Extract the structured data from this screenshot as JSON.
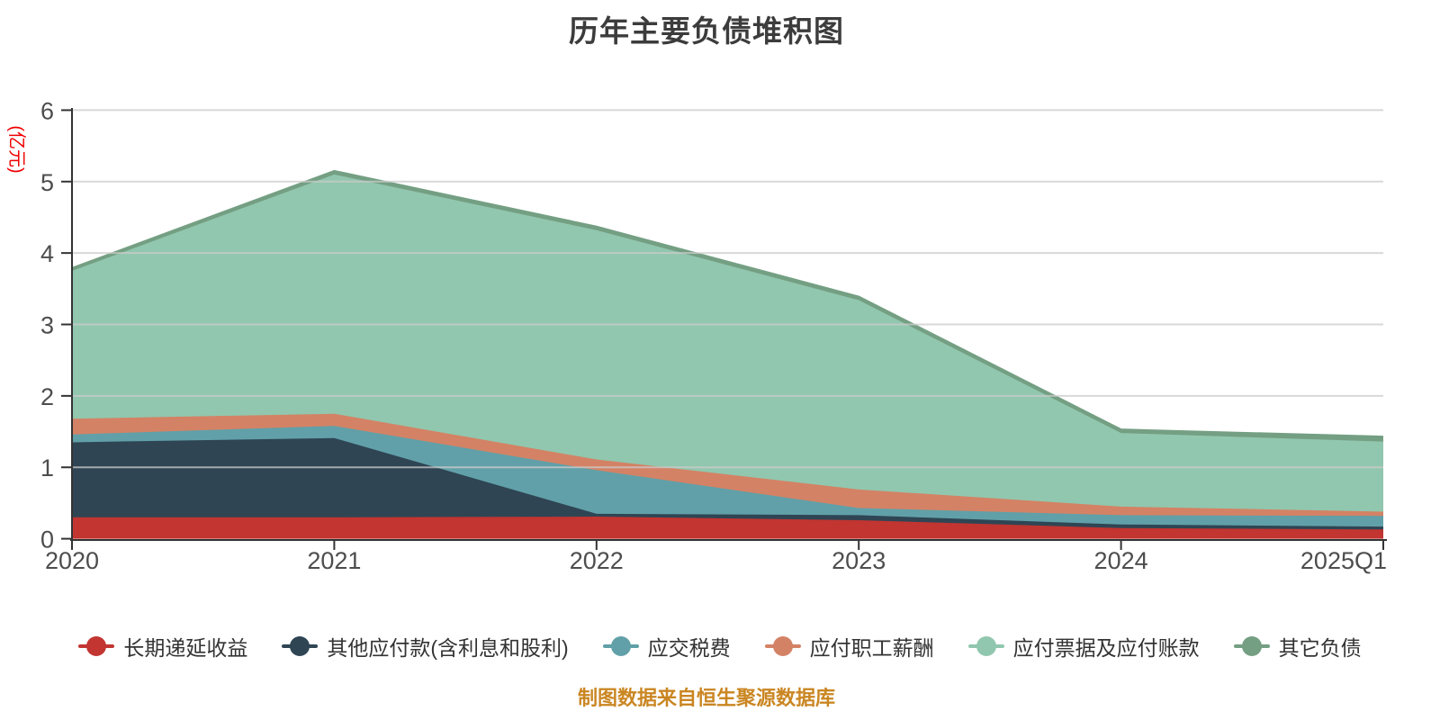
{
  "source_note": "制图数据来自恒生聚源数据库",
  "colors": {
    "background": "#ffffff",
    "axis_line": "#333333",
    "grid_line": "#cccccc",
    "tick_label": "#4d4d4d",
    "title_text": "#3c3c3c",
    "y_axis_name": "#f00000",
    "source_note_text": "#ca8622"
  },
  "chart_data": {
    "type": "area",
    "stacked": true,
    "title": "历年主要负债堆积图",
    "ylabel": "(亿元)",
    "xlabel": "",
    "ylim": [
      0,
      6
    ],
    "yticks": [
      "0",
      "1",
      "2",
      "3",
      "4",
      "5",
      "6"
    ],
    "grid": true,
    "legend_position": "bottom",
    "categories": [
      "2020",
      "2021",
      "2022",
      "2023",
      "2024",
      "2025Q1"
    ],
    "series": [
      {
        "name": "长期递延收益",
        "color": "#c23531",
        "values": [
          0.3,
          0.3,
          0.31,
          0.26,
          0.15,
          0.13
        ]
      },
      {
        "name": "其他应付款(含利息和股利)",
        "color": "#2f4554",
        "values": [
          1.05,
          1.11,
          0.04,
          0.07,
          0.05,
          0.04
        ]
      },
      {
        "name": "应交税费",
        "color": "#61a0a8",
        "values": [
          0.11,
          0.17,
          0.61,
          0.1,
          0.13,
          0.15
        ]
      },
      {
        "name": "应付职工薪酬",
        "color": "#d48265",
        "values": [
          0.22,
          0.17,
          0.15,
          0.26,
          0.12,
          0.06
        ]
      },
      {
        "name": "应付票据及应付账款",
        "color": "#91c7ae",
        "values": [
          2.07,
          3.35,
          3.21,
          2.65,
          1.03,
          0.98
        ]
      },
      {
        "name": "其它负债",
        "color": "#749f83",
        "values": [
          0.04,
          0.05,
          0.05,
          0.05,
          0.05,
          0.07
        ]
      }
    ],
    "totals": [
      3.79,
      5.15,
      4.37,
      3.39,
      1.53,
      1.43
    ]
  }
}
